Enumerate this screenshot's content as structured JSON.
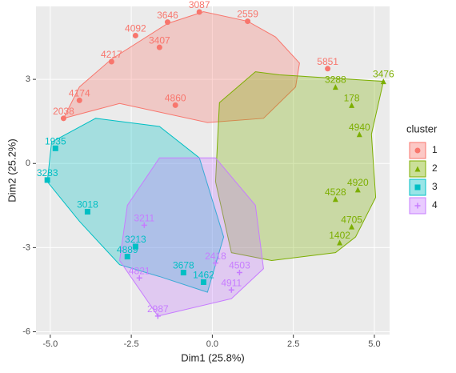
{
  "chart_data": {
    "type": "cluster",
    "xlabel": "Dim1 (25.8%)",
    "ylabel": "Dim2 (25.2%)",
    "legend_title": "cluster",
    "xlim": [
      -5.44,
      5.47
    ],
    "ylim": [
      -6.1,
      5.6
    ],
    "xticks": [
      {
        "value": -5,
        "label": "-5.0"
      },
      {
        "value": -2.5,
        "label": "-2.5"
      },
      {
        "value": 0,
        "label": "0.0"
      },
      {
        "value": 2.5,
        "label": "2.5"
      },
      {
        "value": 5,
        "label": "5.0"
      }
    ],
    "yticks": [
      -6,
      -3,
      0,
      3
    ],
    "grid": true,
    "legend": "right",
    "series": [
      {
        "name": "1",
        "color": "#F8766D",
        "marker": "circle",
        "x": [
          -0.4,
          -1.38,
          1.09,
          -2.37,
          -1.14,
          -3.11,
          -4.59,
          -4.1,
          3.56,
          -1.63
        ],
        "y": [
          5.4,
          5.04,
          5.07,
          4.56,
          2.08,
          3.63,
          1.61,
          2.25,
          3.38,
          4.14
        ],
        "labels": [
          "3087",
          "3646",
          "2559",
          "4092",
          "4860",
          "4217",
          "2038",
          "4174",
          "5851",
          "3407"
        ],
        "hull_x": [
          -0.27,
          1.09,
          1.95,
          2.69,
          2.57,
          1.58,
          -0.15,
          -2.86,
          -4.59,
          -4.1,
          -3.11,
          -1.38
        ],
        "hull_y": [
          5.41,
          5.07,
          4.51,
          3.58,
          2.73,
          1.61,
          1.46,
          2.14,
          1.61,
          2.73,
          3.72,
          4.99
        ]
      },
      {
        "name": "2",
        "color": "#7CAE00",
        "marker": "triangle",
        "x": [
          5.28,
          4.3,
          3.93,
          4.54,
          3.8,
          4.3,
          3.8,
          4.49
        ],
        "y": [
          2.93,
          -2.25,
          -2.82,
          1.04,
          2.73,
          2.08,
          -1.27,
          -0.93
        ],
        "labels": [
          "3476",
          "4705",
          "1402",
          "4940",
          "3288",
          "178",
          "4528",
          "4920"
        ],
        "hull_x": [
          2.07,
          5.28,
          4.91,
          5.04,
          4.42,
          3.8,
          1.83,
          0.59,
          0.1,
          0.22,
          1.33
        ],
        "hull_y": [
          3.16,
          2.93,
          1.04,
          -1.21,
          -2.62,
          -3.18,
          -3.46,
          -3.18,
          -0.65,
          2.17,
          3.27
        ]
      },
      {
        "name": "3",
        "color": "#00BFC4",
        "marker": "square",
        "x": [
          -5.09,
          -2.62,
          -0.89,
          -2.37,
          -0.27,
          -3.85,
          -4.84
        ],
        "y": [
          -0.59,
          -3.32,
          -3.89,
          -2.96,
          -4.23,
          -1.72,
          0.54
        ],
        "labels": [
          "3283",
          "4889",
          "3678",
          "3213",
          "1462",
          "3018",
          "1935"
        ],
        "hull_x": [
          -4.96,
          -3.6,
          -1.63,
          -0.4,
          0.35,
          -0.15,
          -1.63,
          -2.86,
          -4.1,
          -5.09
        ],
        "hull_y": [
          0.76,
          1.61,
          1.32,
          0.2,
          -2.62,
          -4.59,
          -4.03,
          -3.61,
          -2.06,
          -0.65
        ]
      },
      {
        "name": "4",
        "color": "#C77CFF",
        "marker": "plus",
        "x": [
          -1.68,
          -2.25,
          0.1,
          0.59,
          0.84,
          -2.1
        ],
        "y": [
          -5.44,
          -4.08,
          -3.55,
          -4.51,
          -3.89,
          -2.2
        ],
        "labels": [
          "2987",
          "4821",
          "2418",
          "4911",
          "4503",
          "3211"
        ],
        "hull_x": [
          -1.68,
          0.59,
          1.58,
          1.33,
          0.1,
          -1.63,
          -2.62,
          -2.86
        ],
        "hull_y": [
          -5.44,
          -4.82,
          -3.75,
          -1.49,
          0.2,
          0.2,
          -1.49,
          -3.46
        ]
      }
    ]
  }
}
